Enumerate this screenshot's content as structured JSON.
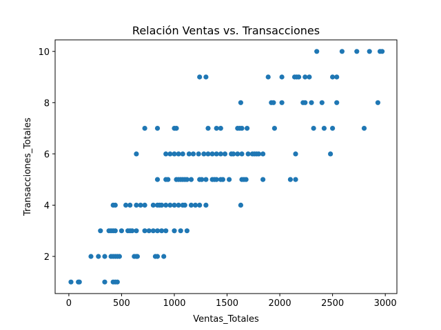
{
  "chart_data": {
    "type": "scatter",
    "title": "Relación Ventas vs. Transacciones",
    "xlabel": "Ventas_Totales",
    "ylabel": "Transacciones_Totales",
    "xlim": [
      -130,
      3110
    ],
    "ylim": [
      0.55,
      10.45
    ],
    "xticks": [
      0,
      500,
      1000,
      1500,
      2000,
      2500,
      3000
    ],
    "yticks": [
      2,
      4,
      6,
      8,
      10
    ],
    "grid": false,
    "legend": "none",
    "marker_color": "#1f77b4",
    "x": [
      20,
      90,
      100,
      340,
      420,
      440,
      460,
      210,
      280,
      340,
      400,
      420,
      440,
      460,
      480,
      620,
      640,
      650,
      820,
      840,
      900,
      300,
      380,
      400,
      420,
      440,
      500,
      560,
      580,
      600,
      640,
      720,
      760,
      800,
      840,
      880,
      920,
      1000,
      1060,
      1120,
      420,
      440,
      540,
      580,
      640,
      680,
      720,
      800,
      840,
      860,
      880,
      920,
      960,
      1000,
      1040,
      1080,
      1100,
      1160,
      1200,
      1240,
      1300,
      1630,
      840,
      920,
      940,
      1020,
      1040,
      1060,
      1080,
      1100,
      1120,
      1160,
      1240,
      1260,
      1300,
      1360,
      1380,
      1400,
      1440,
      1460,
      1520,
      1640,
      1660,
      1680,
      1840,
      2100,
      2150,
      640,
      920,
      960,
      1000,
      1040,
      1080,
      1140,
      1180,
      1230,
      1280,
      1320,
      1360,
      1400,
      1440,
      1480,
      1540,
      1560,
      1600,
      1640,
      1700,
      1740,
      1760,
      1780,
      1800,
      1840,
      2150,
      2480,
      720,
      840,
      1000,
      1020,
      1320,
      1400,
      1440,
      1600,
      1620,
      1640,
      1690,
      1950,
      2320,
      2420,
      2500,
      2800,
      1630,
      1920,
      1940,
      2020,
      2220,
      2240,
      2300,
      2400,
      2540,
      2930,
      1240,
      1300,
      1890,
      2020,
      2140,
      2160,
      2180,
      2240,
      2280,
      2500,
      2540,
      2350,
      2590,
      2730,
      2850,
      2950,
      2970
    ],
    "y": [
      1,
      1,
      1,
      1,
      1,
      1,
      1,
      2,
      2,
      2,
      2,
      2,
      2,
      2,
      2,
      2,
      2,
      2,
      2,
      2,
      2,
      3,
      3,
      3,
      3,
      3,
      3,
      3,
      3,
      3,
      3,
      3,
      3,
      3,
      3,
      3,
      3,
      3,
      3,
      3,
      4,
      4,
      4,
      4,
      4,
      4,
      4,
      4,
      4,
      4,
      4,
      4,
      4,
      4,
      4,
      4,
      4,
      4,
      4,
      4,
      4,
      4,
      5,
      5,
      5,
      5,
      5,
      5,
      5,
      5,
      5,
      5,
      5,
      5,
      5,
      5,
      5,
      5,
      5,
      5,
      5,
      5,
      5,
      5,
      5,
      5,
      5,
      6,
      6,
      6,
      6,
      6,
      6,
      6,
      6,
      6,
      6,
      6,
      6,
      6,
      6,
      6,
      6,
      6,
      6,
      6,
      6,
      6,
      6,
      6,
      6,
      6,
      6,
      6,
      7,
      7,
      7,
      7,
      7,
      7,
      7,
      7,
      7,
      7,
      7,
      7,
      7,
      7,
      7,
      7,
      8,
      8,
      8,
      8,
      8,
      8,
      8,
      8,
      8,
      8,
      9,
      9,
      9,
      9,
      9,
      9,
      9,
      9,
      9,
      9,
      9,
      10,
      10,
      10,
      10,
      10,
      10
    ]
  }
}
